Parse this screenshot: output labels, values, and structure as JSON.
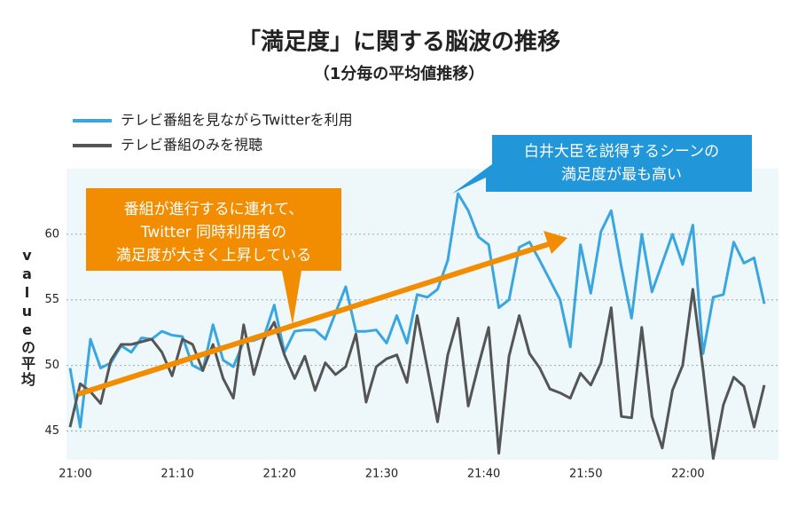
{
  "chart_data": {
    "type": "line",
    "title": "「満足度」に関する脳波の推移",
    "subtitle": "（1分毎の平均値推移）",
    "y_label": "valueの平均",
    "categories": [
      "21:00",
      null,
      null,
      null,
      null,
      null,
      null,
      null,
      null,
      null,
      "21:10",
      null,
      null,
      null,
      null,
      null,
      null,
      null,
      null,
      null,
      "21:20",
      null,
      null,
      null,
      null,
      null,
      null,
      null,
      null,
      null,
      "21:30",
      null,
      null,
      null,
      null,
      null,
      null,
      null,
      null,
      null,
      "21:40",
      null,
      null,
      null,
      null,
      null,
      null,
      null,
      null,
      null,
      "21:50",
      null,
      null,
      null,
      null,
      null,
      null,
      null,
      null,
      null,
      "22:00",
      null,
      null,
      null,
      null,
      null,
      null,
      null,
      null
    ],
    "series": [
      {
        "name": "テレビ番組を見ながらTwitterを利用",
        "color": "#3aa6e0",
        "values": [
          49.8,
          45.3,
          52,
          49.8,
          50.2,
          51.5,
          51,
          52.1,
          52,
          52.6,
          52.3,
          52.2,
          50,
          49.6,
          53.1,
          50.4,
          49.9,
          51.8,
          51.9,
          52.2,
          54.6,
          51,
          52.6,
          52.7,
          52.7,
          52,
          54,
          56,
          52.6,
          52.6,
          52.7,
          51.7,
          53.8,
          51.7,
          55.4,
          55.2,
          55.8,
          58,
          63.1,
          61.8,
          59.8,
          59.2,
          54.4,
          55,
          59,
          59.4,
          58,
          56.5,
          55,
          51.4,
          59.2,
          55.5,
          60.2,
          61.8,
          57.5,
          53.6,
          60,
          55.6,
          57.8,
          60,
          57.7,
          60.7,
          50.9,
          55.2,
          55.4,
          59.4,
          57.8,
          58.2,
          54.7
        ]
      },
      {
        "name": "テレビ番組のみを視聴",
        "color": "#555555",
        "values": [
          45.3,
          48.6,
          48,
          47.1,
          50.4,
          51.6,
          51.6,
          51.8,
          52,
          51,
          49.2,
          52,
          51.6,
          49.6,
          51.6,
          49,
          47.5,
          53.1,
          49.3,
          52,
          53.3,
          50.8,
          49,
          50.7,
          48.1,
          50.2,
          49.3,
          49.9,
          52.4,
          47.2,
          49.9,
          50.5,
          50.8,
          48.7,
          53.8,
          49.8,
          45.7,
          50.8,
          53.6,
          46.9,
          50,
          52.9,
          43.3,
          50.7,
          53.8,
          50.9,
          49.8,
          48.2,
          47.9,
          47.5,
          49.4,
          48.5,
          50.2,
          54.4,
          46.1,
          46,
          52.9,
          46.1,
          43.7,
          48.1,
          50,
          55.8,
          49.7,
          42.9,
          47,
          49.1,
          48.4,
          45.3,
          48.5
        ]
      }
    ],
    "ylim": [
      42.8,
      65
    ],
    "yticks": [
      45,
      50,
      55,
      60
    ],
    "grid": true,
    "annotations": [
      {
        "lines": [
          "番組が進行するに連れて、",
          "Twitter 同時利用者の",
          "満足度が大きく上昇している"
        ],
        "color": "#f28c00"
      },
      {
        "lines": [
          "白井大臣を説得するシーンの",
          "満足度が最も高い"
        ],
        "color": "#2196d9"
      }
    ]
  }
}
